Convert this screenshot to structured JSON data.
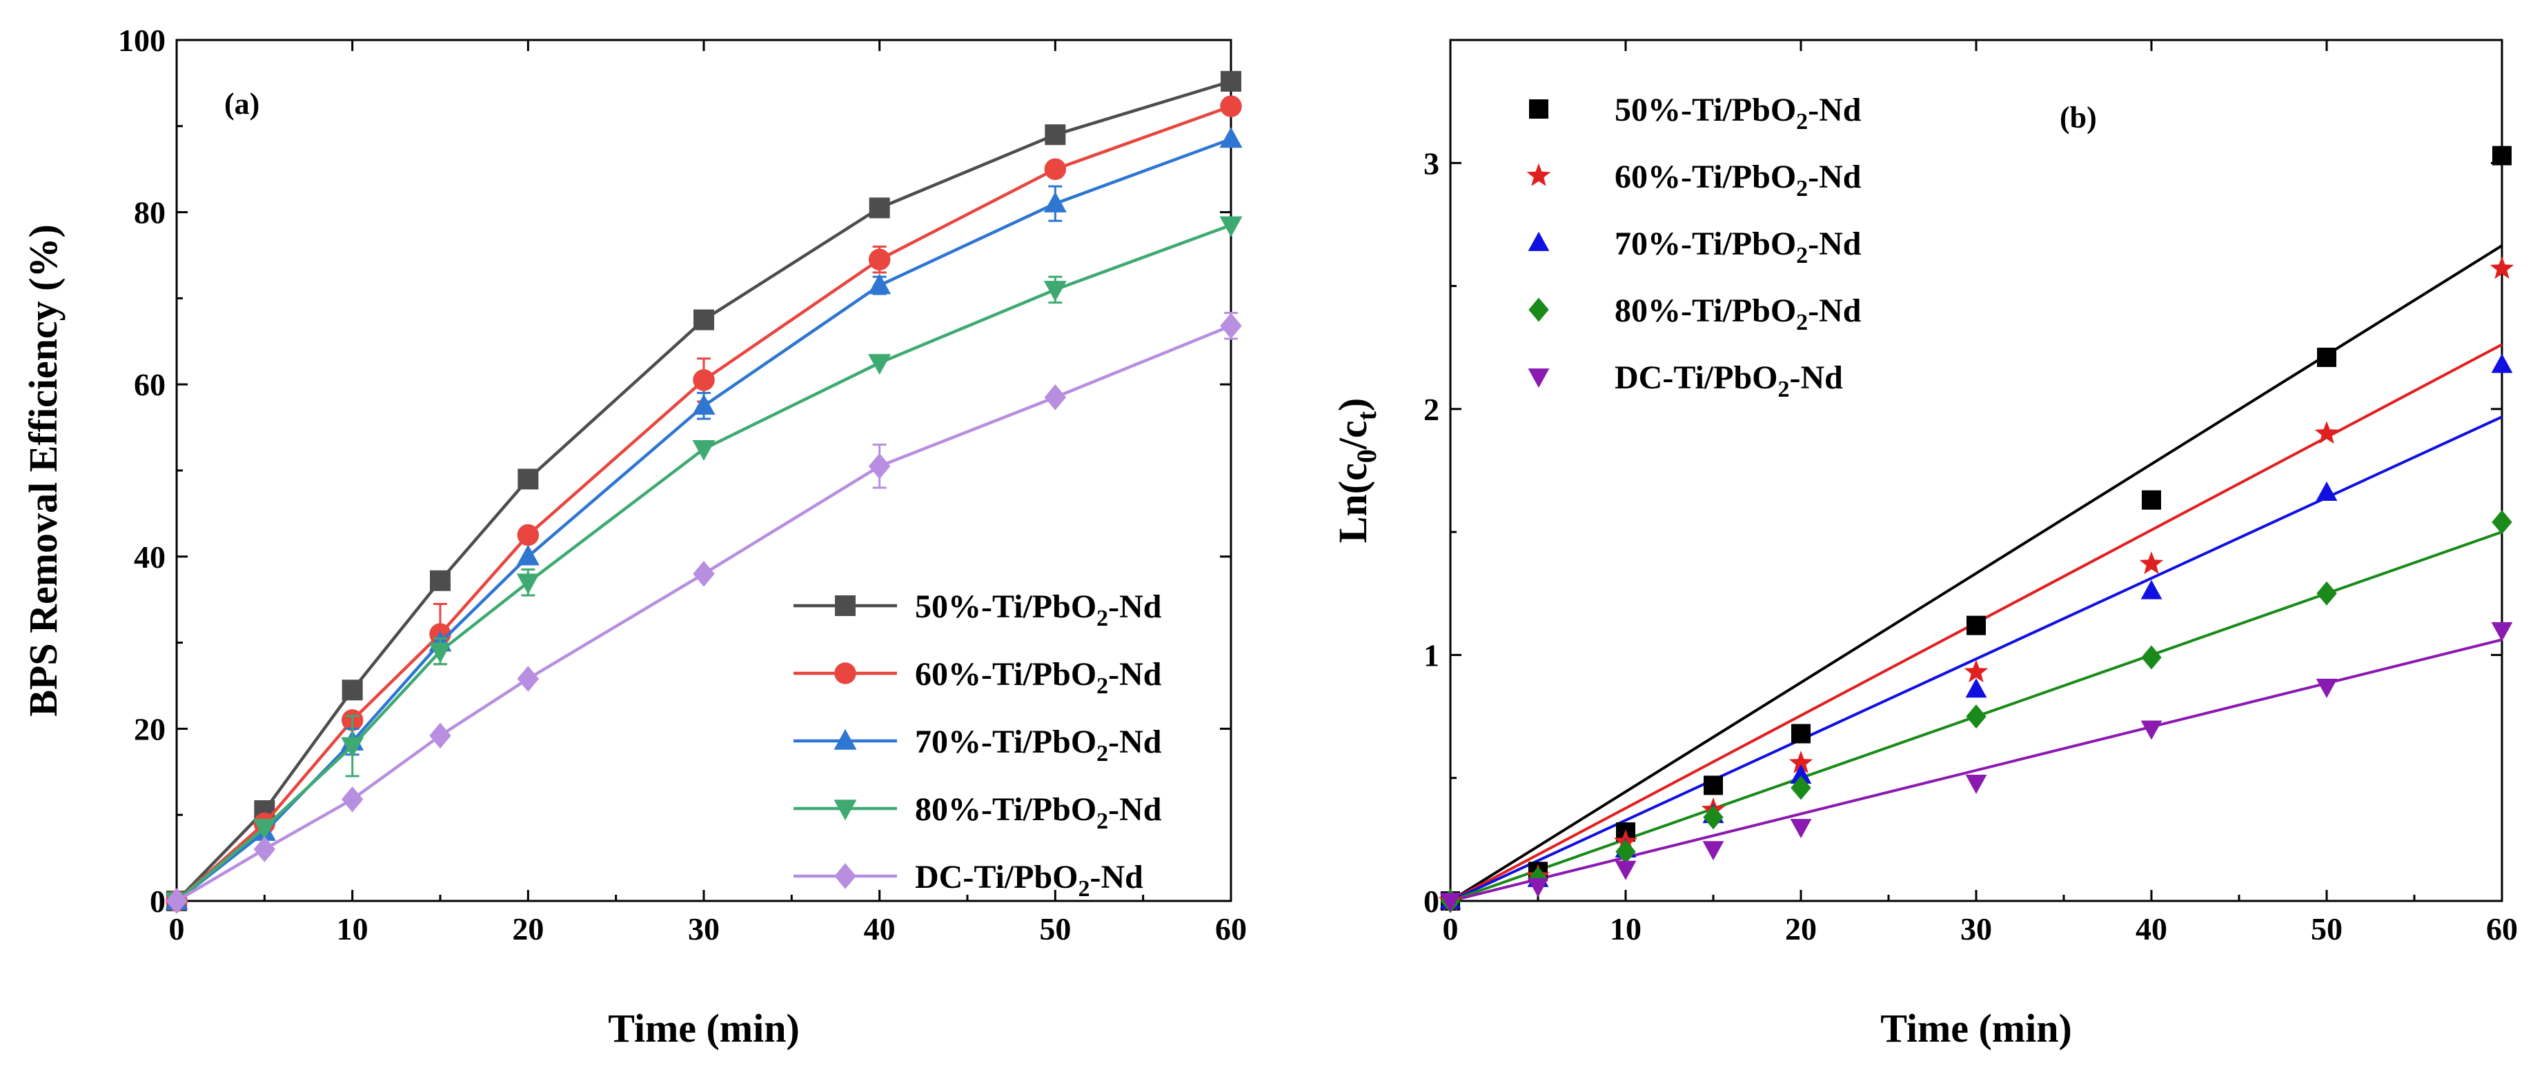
{
  "chart_data": [
    {
      "type": "line",
      "panel_label": "(a)",
      "xlabel": "Time  (min)",
      "ylabel": "BPS Removal Efficiency (%)",
      "xlim": [
        0,
        60
      ],
      "ylim": [
        0,
        100
      ],
      "xticks": [
        "0",
        "10",
        "20",
        "30",
        "40",
        "50",
        "60"
      ],
      "yticks": [
        "0",
        "20",
        "40",
        "60",
        "80",
        "100"
      ],
      "legend_position": "bottom-right",
      "x": [
        0,
        5,
        10,
        15,
        20,
        30,
        40,
        50,
        60
      ],
      "series": [
        {
          "name": "50%-Ti/PbO",
          "sub": "2",
          "suffix": "-Nd",
          "color": "#4d4d4d",
          "marker": "square",
          "values": [
            0,
            10.5,
            24.5,
            37.2,
            49.0,
            67.5,
            80.5,
            89.0,
            95.2
          ],
          "errors": [
            0,
            0,
            0,
            0,
            0,
            0,
            0,
            0,
            0
          ]
        },
        {
          "name": "60%-Ti/PbO",
          "sub": "2",
          "suffix": "-Nd",
          "color": "#e8463f",
          "marker": "circle",
          "values": [
            0,
            9.0,
            21.0,
            31.0,
            42.5,
            60.5,
            74.5,
            85.0,
            92.3
          ],
          "errors": [
            0,
            0,
            0,
            3.5,
            0,
            2.5,
            1.5,
            0,
            0
          ]
        },
        {
          "name": "70%-Ti/PbO",
          "sub": "2",
          "suffix": "-Nd",
          "color": "#2e76d2",
          "marker": "triangle-up",
          "values": [
            0,
            8.0,
            18.5,
            30.0,
            40.0,
            57.5,
            71.5,
            81.0,
            88.5
          ],
          "errors": [
            0,
            0,
            1.5,
            0,
            0,
            1.5,
            1.0,
            2.0,
            0
          ]
        },
        {
          "name": "80%-Ti/PbO",
          "sub": "2",
          "suffix": "-Nd",
          "color": "#3eaa72",
          "marker": "triangle-down",
          "values": [
            0,
            8.5,
            18.0,
            29.0,
            37.0,
            52.5,
            62.5,
            71.0,
            78.5
          ],
          "errors": [
            0,
            0,
            3.5,
            1.5,
            1.5,
            0,
            0,
            1.5,
            0
          ]
        },
        {
          "name": "DC-Ti/PbO",
          "sub": "2",
          "suffix": "-Nd",
          "color": "#b88ee0",
          "marker": "diamond",
          "values": [
            0,
            6.0,
            11.8,
            19.2,
            25.8,
            38.0,
            50.5,
            58.5,
            66.8
          ],
          "errors": [
            0,
            0,
            0,
            0,
            0,
            0,
            2.5,
            0,
            1.5
          ]
        }
      ]
    },
    {
      "type": "scatter",
      "panel_label": "(b)",
      "xlabel": "Time  (min)",
      "ylabel": "Ln(c",
      "ylabel_sub1": "0",
      "ylabel_mid": "/c",
      "ylabel_sub2": "t",
      "ylabel_end": ")",
      "xlim": [
        0,
        60
      ],
      "ylim": [
        0,
        3.5
      ],
      "xticks": [
        "0",
        "10",
        "20",
        "30",
        "40",
        "50",
        "60"
      ],
      "yticks": [
        "0",
        "1",
        "2",
        "3"
      ],
      "legend_position": "top-left",
      "x": [
        0,
        5,
        10,
        15,
        20,
        30,
        40,
        50,
        60
      ],
      "series": [
        {
          "name": "50%-Ti/PbO",
          "sub": "2",
          "suffix": "-Nd",
          "color": "#000000",
          "marker": "square",
          "values": [
            0,
            0.12,
            0.28,
            0.47,
            0.68,
            1.12,
            1.63,
            2.21,
            3.03
          ],
          "fit_slope": 0.0444
        },
        {
          "name": "60%-Ti/PbO",
          "sub": "2",
          "suffix": "-Nd",
          "color": "#e02020",
          "marker": "star",
          "values": [
            0,
            0.1,
            0.24,
            0.37,
            0.56,
            0.93,
            1.37,
            1.9,
            2.57
          ],
          "fit_slope": 0.0377
        },
        {
          "name": "70%-Ti/PbO",
          "sub": "2",
          "suffix": "-Nd",
          "color": "#1010e0",
          "marker": "triangle-up",
          "values": [
            0,
            0.09,
            0.21,
            0.35,
            0.51,
            0.86,
            1.26,
            1.66,
            2.18
          ],
          "fit_slope": 0.0328
        },
        {
          "name": "80%-Ti/PbO",
          "sub": "2",
          "suffix": "-Nd",
          "color": "#1a8a1a",
          "marker": "diamond",
          "values": [
            0,
            0.09,
            0.2,
            0.34,
            0.46,
            0.75,
            0.99,
            1.25,
            1.54
          ],
          "fit_slope": 0.025
        },
        {
          "name": "DC-Ti/PbO",
          "sub": "2",
          "suffix": "-Nd",
          "color": "#8a1ab0",
          "marker": "triangle-down",
          "values": [
            0,
            0.06,
            0.13,
            0.21,
            0.3,
            0.48,
            0.7,
            0.87,
            1.1
          ],
          "fit_slope": 0.0177
        }
      ]
    }
  ]
}
